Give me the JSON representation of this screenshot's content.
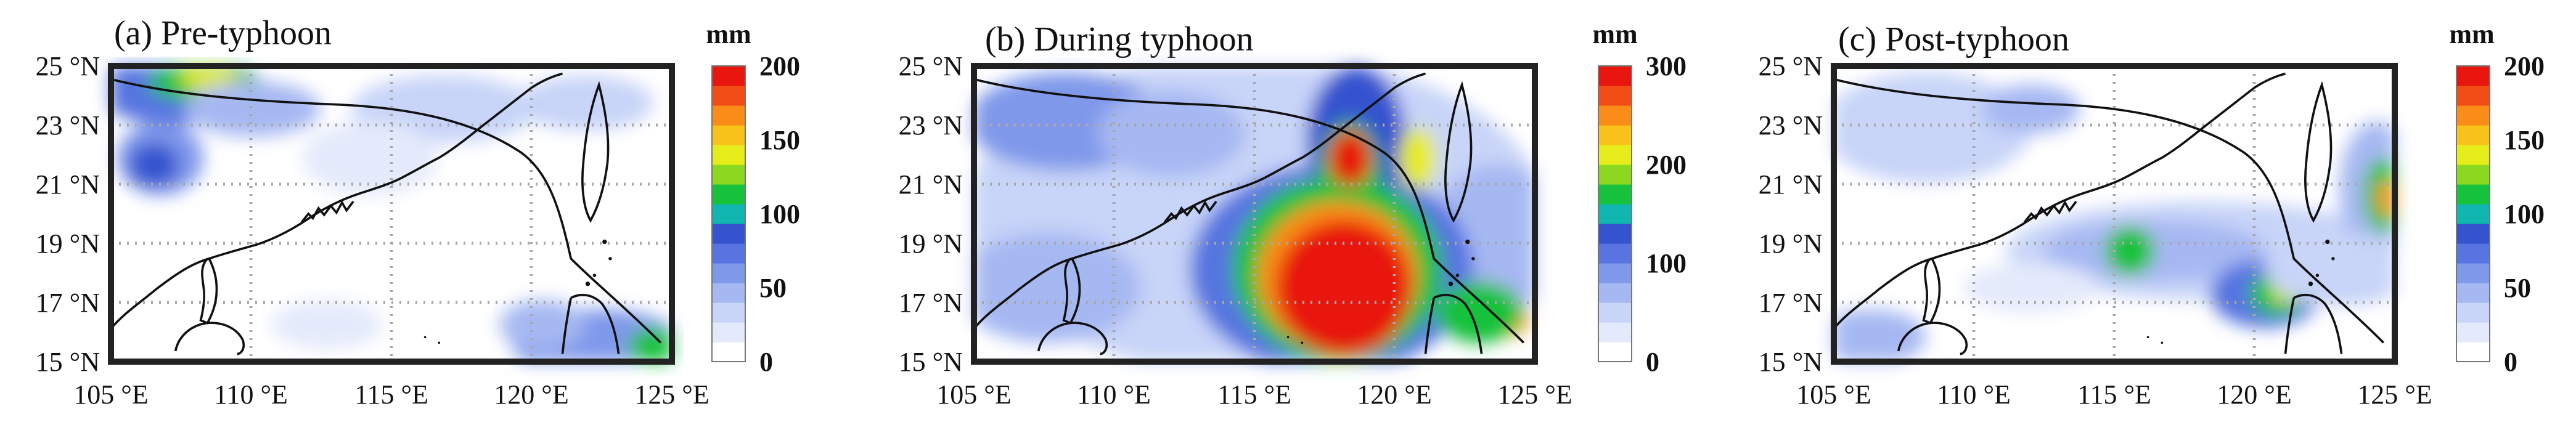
{
  "figure": {
    "panels": [
      {
        "title": "(a) Pre-typhoon",
        "unit": "mm",
        "colorbar_ticks": [
          "0",
          "50",
          "100",
          "150",
          "200"
        ],
        "colorbar_max": 200,
        "x_ticks": [
          "105 °E",
          "110 °E",
          "115 °E",
          "120 °E",
          "125 °E"
        ],
        "y_ticks": [
          "15 °N",
          "17 °N",
          "19 °N",
          "21 °N",
          "23 °N",
          "25 °N"
        ]
      },
      {
        "title": "(b) During typhoon",
        "unit": "mm",
        "colorbar_ticks": [
          "0",
          "100",
          "200",
          "300"
        ],
        "colorbar_max": 300,
        "x_ticks": [
          "105 °E",
          "110 °E",
          "115 °E",
          "120 °E",
          "125 °E"
        ],
        "y_ticks": [
          "15 °N",
          "17 °N",
          "19 °N",
          "21 °N",
          "23 °N",
          "25 °N"
        ]
      },
      {
        "title": "(c) Post-typhoon",
        "unit": "mm",
        "colorbar_ticks": [
          "0",
          "50",
          "100",
          "150",
          "200"
        ],
        "colorbar_max": 200,
        "x_ticks": [
          "105 °E",
          "110 °E",
          "115 °E",
          "120 °E",
          "125 °E"
        ],
        "y_ticks": [
          "15 °N",
          "17 °N",
          "19 °N",
          "21 °N",
          "23 °N",
          "25 °N"
        ]
      }
    ],
    "map_extent": {
      "lon": [
        105,
        125
      ],
      "lat": [
        15,
        25
      ]
    },
    "colormap": [
      "#ffffff",
      "#e4eafb",
      "#c8d4f8",
      "#a6b8f2",
      "#7f98ea",
      "#5774e0",
      "#3553cf",
      "#12b6b0",
      "#16c13b",
      "#8cd81e",
      "#e6ec1a",
      "#f9c21a",
      "#f98d18",
      "#f24d14",
      "#e8160f"
    ],
    "colors": {
      "coastline": "#111111",
      "track": "#111111",
      "grid": "#a8a8a8"
    }
  }
}
